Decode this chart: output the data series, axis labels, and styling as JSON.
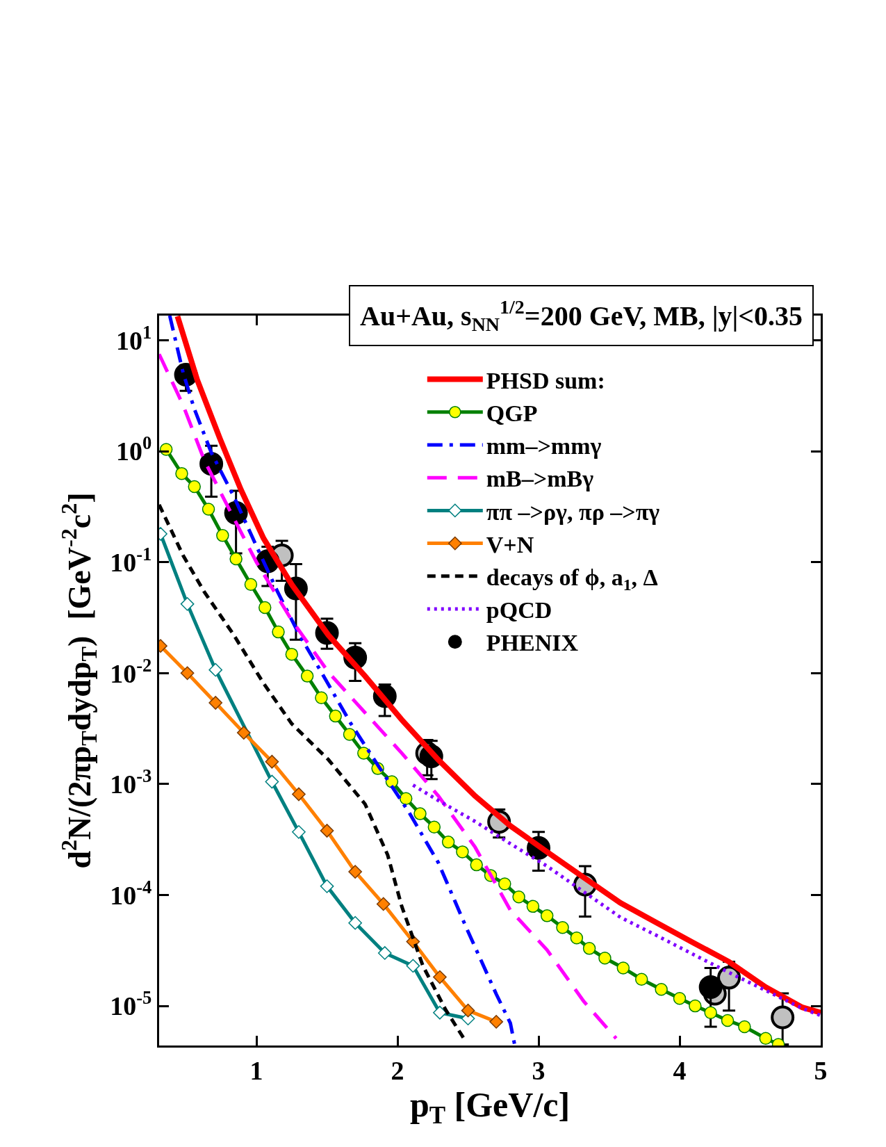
{
  "chart_data": {
    "type": "line",
    "title": "Au+Au, s$_{NN}$$^{1/2}$=200 GeV, MB, |y|<0.35",
    "xlabel": "p$_{T}$ [GeV/c]",
    "ylabel": "d$^{2}$N/(2πp$_{T}$dydp$_{T}$)  [GeV$^{-2}$c$^{2}$]",
    "log": "y",
    "grid": false,
    "legend": "top right",
    "xlim": [
      0.31,
      5
    ],
    "xticks": [
      1,
      2,
      3,
      4,
      5
    ],
    "ylim": [
      4.4e-06,
      16.7
    ],
    "yticks": [
      {
        "value": 10,
        "label": "10$^{1}$"
      },
      {
        "value": 1,
        "label": "10$^{0}$"
      },
      {
        "value": 0.1,
        "label": "10$^{-1}$"
      },
      {
        "value": 0.01,
        "label": "10$^{-2}$"
      },
      {
        "value": 0.001,
        "label": "10$^{-3}$"
      },
      {
        "value": 0.0001,
        "label": "10$^{-4}$"
      },
      {
        "value": 1e-05,
        "label": "10$^{-5}$"
      }
    ],
    "series": [
      {
        "name": "PHSD sum:",
        "color": "#ff0000",
        "marker": "none",
        "line_style": "solid",
        "x": [
          0.44,
          0.58,
          0.74,
          0.89,
          1.05,
          1.25,
          1.51,
          1.77,
          2.03,
          2.29,
          2.55,
          2.8,
          3.06,
          3.32,
          3.58,
          3.84,
          4.1,
          4.35,
          4.61,
          4.87,
          5.0
        ],
        "values": [
          16.5,
          4.4,
          1.31,
          0.45,
          0.164,
          0.063,
          0.022,
          0.0094,
          0.0038,
          0.00165,
          0.00078,
          0.00042,
          0.000245,
          0.000144,
          8.5e-05,
          5.6e-05,
          3.7e-05,
          2.5e-05,
          1.48e-05,
          9.7e-06,
          8.7e-06
        ]
      },
      {
        "name": "QGP",
        "color": "#008000",
        "colors": [
          "#ffff00",
          "#ffff00",
          "#ffff00",
          "#ffff00",
          "#ffff00",
          "#ffff00",
          "#ffff00",
          "#ffff00",
          "#ffff00",
          "#ffff00",
          "#ffff00",
          "#ffff00",
          "#ffff00",
          "#ffff00",
          "#ffff00",
          "#ffff00",
          "#ffff00",
          "#ffff00",
          "#ffff00",
          "#ffff00",
          "#ffff00",
          "#ffff00",
          "#ffff00",
          "#ffff00",
          "#ffff00",
          "#ffff00",
          "#ffff00",
          "#ffff00",
          "#ffff00",
          "#ffff00",
          "#ffff00",
          "#ffff00",
          "#ffff00",
          "#ffff00",
          "#ffff00",
          "#ffff00",
          "#ffff00",
          "#ffff00",
          "#ffff00",
          "#ffff00",
          "#ffff00",
          "#ffff00"
        ],
        "marker": "circle",
        "line_style": "solid",
        "x": [
          0.36,
          0.47,
          0.56,
          0.66,
          0.76,
          0.855,
          0.96,
          1.06,
          1.155,
          1.25,
          1.36,
          1.46,
          1.56,
          1.66,
          1.76,
          1.86,
          1.96,
          2.06,
          2.16,
          2.26,
          2.36,
          2.46,
          2.56,
          2.66,
          2.76,
          2.86,
          2.96,
          3.06,
          3.17,
          3.27,
          3.36,
          3.47,
          3.6,
          3.73,
          3.87,
          4.0,
          4.11,
          4.22,
          4.34,
          4.46,
          4.61,
          4.7
        ],
        "values": [
          1.04,
          0.63,
          0.48,
          0.3,
          0.174,
          0.107,
          0.063,
          0.039,
          0.0235,
          0.0148,
          0.0094,
          0.006,
          0.0041,
          0.0028,
          0.0019,
          0.00138,
          0.00105,
          0.00074,
          0.00054,
          0.00041,
          0.0003,
          0.000245,
          0.000187,
          0.00015,
          0.000126,
          9.6e-05,
          7.9e-05,
          6.5e-05,
          5.1e-05,
          4.1e-05,
          3.3e-05,
          2.7e-05,
          2.2e-05,
          1.74e-05,
          1.41e-05,
          1.17e-05,
          1e-05,
          8.7e-06,
          7.4e-06,
          6.5e-06,
          5.1e-06,
          4.5e-06
        ]
      },
      {
        "name": "mm–>mmγ",
        "color": "#0000ff",
        "marker": "none",
        "line_style": "dashdot",
        "x": [
          0.385,
          0.48,
          0.56,
          0.68,
          0.84,
          0.995,
          1.15,
          1.305,
          1.46,
          1.67,
          1.87,
          2.08,
          2.29,
          2.49,
          2.7,
          2.8,
          2.83
        ],
        "values": [
          16.7,
          5.1,
          2.4,
          0.97,
          0.39,
          0.144,
          0.054,
          0.022,
          0.0102,
          0.0035,
          0.00142,
          0.00056,
          0.000195,
          5e-05,
          1.28e-05,
          7e-06,
          4.5e-06
        ]
      },
      {
        "name": "mB–>mBγ",
        "color": "#ff00ff",
        "marker": "none",
        "line_style": "longdash",
        "x": [
          0.31,
          0.48,
          0.63,
          0.79,
          1.0,
          1.25,
          1.51,
          1.77,
          2.03,
          2.29,
          2.55,
          2.8,
          3.06,
          3.32,
          3.55
        ],
        "values": [
          7.5,
          2.6,
          0.83,
          0.33,
          0.1,
          0.03,
          0.0102,
          0.0044,
          0.0019,
          0.00078,
          0.00027,
          7.3e-05,
          3.2e-05,
          1.1e-05,
          5.1e-06
        ]
      },
      {
        "name": "ππ –>ργ, πρ –>πγ",
        "color": "#008080",
        "colors": [
          "#ffffff",
          "#ffffff",
          "#ffffff",
          "#ffffff",
          "#ffffff",
          "#ffffff",
          "#ffffff",
          "#ffffff",
          "#ffffff",
          "#ffffff",
          "#ffffff"
        ],
        "marker": "diamond",
        "line_style": "solid",
        "x": [
          0.32,
          0.51,
          0.71,
          1.11,
          1.3,
          1.5,
          1.7,
          1.91,
          2.11,
          2.3,
          2.5
        ],
        "values": [
          0.18,
          0.042,
          0.0107,
          0.00105,
          0.00037,
          0.00012,
          5.6e-05,
          3e-05,
          2.3e-05,
          8.7e-06,
          7.7e-06
        ]
      },
      {
        "name": "V+N",
        "color": "#ff8000",
        "colors": [
          "#ff8000",
          "#ff8000",
          "#ff8000",
          "#ff8000",
          "#ff8000",
          "#ff8000",
          "#ff8000",
          "#ff8000",
          "#ff8000",
          "#ff8000",
          "#ff8000",
          "#ff8000",
          "#ff8000"
        ],
        "marker": "diamond",
        "line_style": "solid",
        "x": [
          0.32,
          0.51,
          0.71,
          0.91,
          1.11,
          1.3,
          1.5,
          1.7,
          1.9,
          2.11,
          2.3,
          2.5,
          2.7
        ],
        "values": [
          0.0176,
          0.01,
          0.0054,
          0.0029,
          0.00159,
          0.00081,
          0.00038,
          0.000162,
          8.3e-05,
          3.8e-05,
          1.82e-05,
          9.1e-06,
          7.2e-06
        ]
      },
      {
        "name": "decays of ϕ, a$_{1}$, Δ",
        "color": "#000000",
        "marker": "none",
        "line_style": "dashed",
        "x": [
          0.31,
          0.48,
          0.63,
          0.84,
          1.05,
          1.25,
          1.51,
          1.77,
          1.93,
          2.03,
          2.18,
          2.34,
          2.47
        ],
        "values": [
          0.33,
          0.115,
          0.054,
          0.022,
          0.0081,
          0.0035,
          0.00166,
          0.00066,
          0.00023,
          7.9e-05,
          2.3e-05,
          9.3e-06,
          5.1e-06
        ]
      },
      {
        "name": "pQCD",
        "color": "#8000ff",
        "marker": "none",
        "line_style": "dotted",
        "x": [
          2.11,
          2.29,
          2.55,
          2.8,
          3.06,
          3.32,
          3.58,
          3.84,
          4.1,
          4.35,
          4.61,
          4.87,
          5.0
        ],
        "values": [
          0.00098,
          0.00071,
          0.00046,
          0.00029,
          0.000182,
          0.000107,
          6.3e-05,
          4.3e-05,
          2.9e-05,
          2e-05,
          1.38e-05,
          9.5e-06,
          8.2e-06
        ]
      },
      {
        "type": "scatter",
        "color": "#c0c0c0",
        "marker": "circle",
        "x": [
          1.18,
          2.21,
          2.72,
          3.33,
          4.25,
          4.35,
          4.73
        ],
        "values": [
          0.115,
          0.0019,
          0.000457,
          0.000124,
          1.29e-05,
          1.8e-05,
          7.9e-06
        ],
        "errors": [
          [
            0.068,
            0.156
          ],
          [
            0.0012,
            0.0025
          ],
          [
            0.00033,
            0.00059
          ],
          [
            6.4e-05,
            0.000182
          ],
          null,
          [
            9.1e-06,
            2.5e-05
          ],
          [
            4.5e-06,
            1.3e-05
          ]
        ]
      },
      {
        "type": "scatter",
        "name": "PHENIX",
        "color": "#000000",
        "marker": "circle",
        "x": [
          0.5,
          0.68,
          0.855,
          1.08,
          1.28,
          1.5,
          1.7,
          1.91,
          2.24,
          3.0,
          4.22
        ],
        "values": [
          4.9,
          0.77,
          0.278,
          0.102,
          0.058,
          0.023,
          0.0138,
          0.0062,
          0.00178,
          0.000266,
          1.48e-05
        ],
        "errors": [
          [
            3.5,
            5.97
          ],
          [
            0.39,
            1.12
          ],
          [
            0.12,
            0.44
          ],
          [
            0.061,
            0.138
          ],
          [
            0.02,
            0.096
          ],
          [
            0.0166,
            0.031
          ],
          [
            0.0085,
            0.0186
          ],
          [
            0.0041,
            0.0079
          ],
          [
            0.00111,
            0.00245
          ],
          [
            0.000166,
            0.00037
          ],
          [
            6.5e-06,
            2.2e-05
          ]
        ]
      }
    ]
  }
}
